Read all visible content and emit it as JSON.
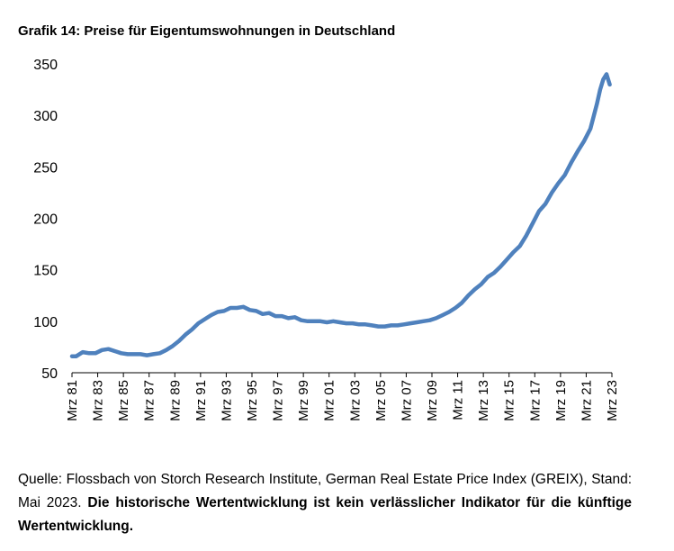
{
  "title": "Grafik 14: Preise für Eigentumswohnungen in Deutschland",
  "source": {
    "text": "Quelle: Flossbach von Storch Research Institute, German Real Estate Price Index (GREIX), Stand: Mai 2023.",
    "disclaimer": "Die historische Wertentwicklung ist kein verlässlicher Indikator für die künftige Wertentwicklung."
  },
  "colors": {
    "line": "#4f81bd",
    "axis": "#000000"
  },
  "chart_data": {
    "type": "line",
    "title": "Grafik 14: Preise für Eigentumswohnungen in Deutschland",
    "xlabel": "",
    "ylabel": "",
    "ylim": [
      50,
      350
    ],
    "xlim": [
      1981.17,
      2023.17
    ],
    "grid": false,
    "legend": "none",
    "y_ticks": [
      50,
      100,
      150,
      200,
      250,
      300,
      350
    ],
    "x_ticks": [
      {
        "x": 1981.17,
        "label": "Mrz 81"
      },
      {
        "x": 1983.17,
        "label": "Mrz 83"
      },
      {
        "x": 1985.17,
        "label": "Mrz 85"
      },
      {
        "x": 1987.17,
        "label": "Mrz 87"
      },
      {
        "x": 1989.17,
        "label": "Mrz 89"
      },
      {
        "x": 1991.17,
        "label": "Mrz 91"
      },
      {
        "x": 1993.17,
        "label": "Mrz 93"
      },
      {
        "x": 1995.17,
        "label": "Mrz 95"
      },
      {
        "x": 1997.17,
        "label": "Mrz 97"
      },
      {
        "x": 1999.17,
        "label": "Mrz 99"
      },
      {
        "x": 2001.17,
        "label": "Mrz 01"
      },
      {
        "x": 2003.17,
        "label": "Mrz 03"
      },
      {
        "x": 2005.17,
        "label": "Mrz 05"
      },
      {
        "x": 2007.17,
        "label": "Mrz 07"
      },
      {
        "x": 2009.17,
        "label": "Mrz 09"
      },
      {
        "x": 2011.17,
        "label": "Mrz 11"
      },
      {
        "x": 2013.17,
        "label": "Mrz 13"
      },
      {
        "x": 2015.17,
        "label": "Mrz 15"
      },
      {
        "x": 2017.17,
        "label": "Mrz 17"
      },
      {
        "x": 2019.17,
        "label": "Mrz 19"
      },
      {
        "x": 2021.17,
        "label": "Mrz 21"
      },
      {
        "x": 2023.17,
        "label": "Mrz 23"
      }
    ],
    "series": [
      {
        "x": [
          1981.17,
          1981.5,
          1982.0,
          1982.5,
          1983.0,
          1983.5,
          1984.0,
          1984.5,
          1985.0,
          1985.5,
          1986.0,
          1986.5,
          1987.0,
          1987.5,
          1988.0,
          1988.5,
          1989.0,
          1989.5,
          1990.0,
          1990.5,
          1991.0,
          1991.5,
          1992.0,
          1992.5,
          1993.0,
          1993.5,
          1994.0,
          1994.5,
          1995.0,
          1995.5,
          1996.0,
          1996.5,
          1997.0,
          1997.5,
          1998.0,
          1998.5,
          1999.0,
          1999.5,
          2000.0,
          2000.5,
          2001.0,
          2001.5,
          2002.0,
          2002.5,
          2003.0,
          2003.5,
          2004.0,
          2004.5,
          2005.0,
          2005.5,
          2006.0,
          2006.5,
          2007.0,
          2007.5,
          2008.0,
          2008.5,
          2009.0,
          2009.5,
          2010.0,
          2010.5,
          2011.0,
          2011.5,
          2012.0,
          2012.5,
          2013.0,
          2013.5,
          2014.0,
          2014.5,
          2015.0,
          2015.5,
          2016.0,
          2016.5,
          2017.0,
          2017.5,
          2018.0,
          2018.5,
          2019.0,
          2019.5,
          2020.0,
          2020.5,
          2021.0,
          2021.5,
          2022.0,
          2022.25,
          2022.5,
          2022.75,
          2023.0
        ],
        "values": [
          66,
          66,
          70,
          69,
          69,
          72,
          73,
          71,
          69,
          68,
          68,
          68,
          67,
          68,
          69,
          72,
          76,
          81,
          87,
          92,
          98,
          102,
          106,
          109,
          110,
          113,
          113,
          114,
          111,
          110,
          107,
          108,
          105,
          105,
          103,
          104,
          101,
          100,
          100,
          100,
          99,
          100,
          99,
          98,
          98,
          97,
          97,
          96,
          95,
          95,
          96,
          96,
          97,
          98,
          99,
          100,
          101,
          103,
          106,
          109,
          113,
          118,
          125,
          131,
          136,
          143,
          147,
          153,
          160,
          167,
          173,
          183,
          195,
          207,
          214,
          225,
          234,
          242,
          254,
          265,
          275,
          287,
          311,
          325,
          335,
          340,
          330
        ]
      }
    ]
  }
}
